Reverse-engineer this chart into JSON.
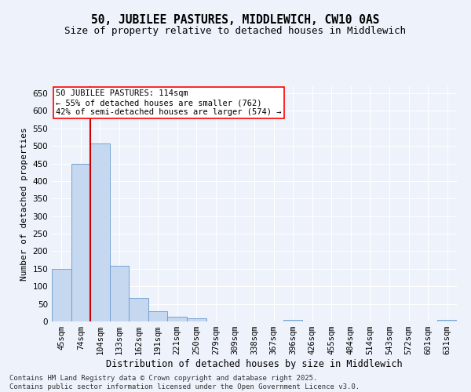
{
  "title": "50, JUBILEE PASTURES, MIDDLEWICH, CW10 0AS",
  "subtitle": "Size of property relative to detached houses in Middlewich",
  "xlabel": "Distribution of detached houses by size in Middlewich",
  "ylabel": "Number of detached properties",
  "categories": [
    "45sqm",
    "74sqm",
    "104sqm",
    "133sqm",
    "162sqm",
    "191sqm",
    "221sqm",
    "250sqm",
    "279sqm",
    "309sqm",
    "338sqm",
    "367sqm",
    "396sqm",
    "426sqm",
    "455sqm",
    "484sqm",
    "514sqm",
    "543sqm",
    "572sqm",
    "601sqm",
    "631sqm"
  ],
  "values": [
    150,
    450,
    507,
    158,
    67,
    30,
    13,
    8,
    0,
    0,
    0,
    0,
    5,
    0,
    0,
    0,
    0,
    0,
    0,
    0,
    5
  ],
  "bar_color": "#c5d8f0",
  "bar_edge_color": "#6699cc",
  "vline_position": 1.5,
  "vline_color": "#cc0000",
  "annotation_line1": "50 JUBILEE PASTURES: 114sqm",
  "annotation_line2": "← 55% of detached houses are smaller (762)",
  "annotation_line3": "42% of semi-detached houses are larger (574) →",
  "annotation_fontsize": 7.5,
  "ylim": [
    0,
    670
  ],
  "yticks": [
    0,
    50,
    100,
    150,
    200,
    250,
    300,
    350,
    400,
    450,
    500,
    550,
    600,
    650
  ],
  "title_fontsize": 10.5,
  "subtitle_fontsize": 9,
  "xlabel_fontsize": 8.5,
  "ylabel_fontsize": 8,
  "tick_fontsize": 7.5,
  "footer_text": "Contains HM Land Registry data © Crown copyright and database right 2025.\nContains public sector information licensed under the Open Government Licence v3.0.",
  "footer_fontsize": 6.5,
  "background_color": "#eef2fb",
  "plot_bg_color": "#eef2fb",
  "grid_color": "#ffffff"
}
